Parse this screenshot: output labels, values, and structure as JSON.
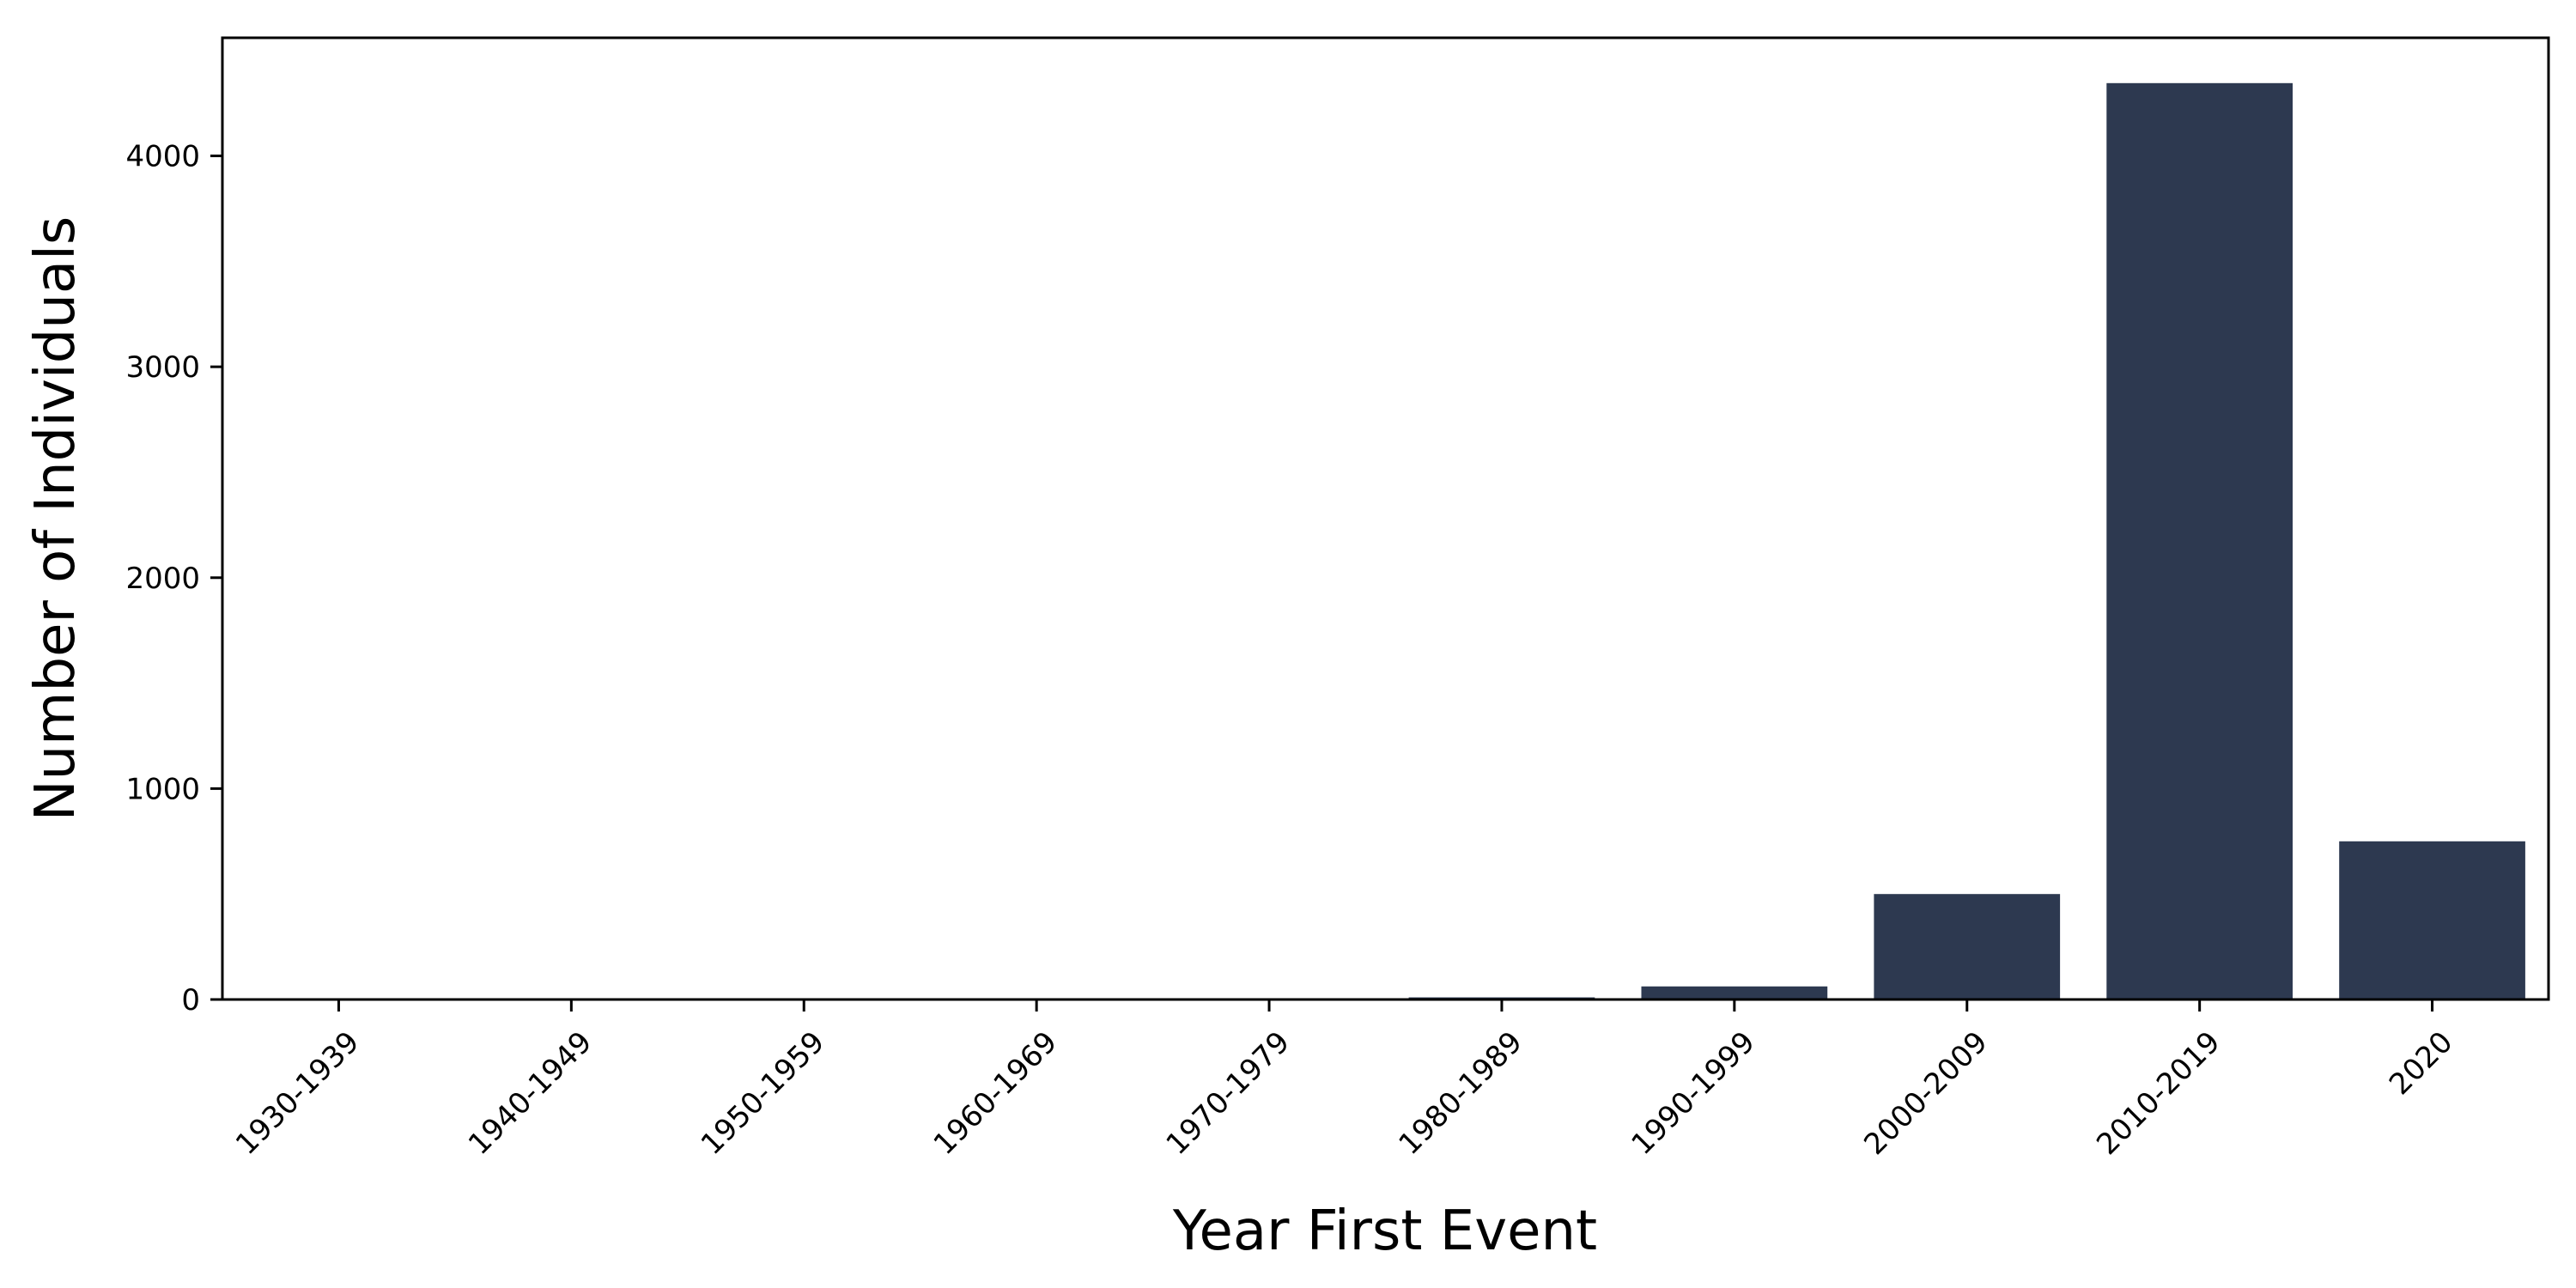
{
  "chart_data": {
    "type": "bar",
    "categories": [
      "1930-1939",
      "1940-1949",
      "1950-1959",
      "1960-1969",
      "1970-1979",
      "1980-1989",
      "1990-1999",
      "2000-2009",
      "2010-2019",
      "2020"
    ],
    "values": [
      1,
      1,
      2,
      3,
      4,
      10,
      62,
      500,
      4345,
      750
    ],
    "xlabel": "Year First Event",
    "ylabel": "Number of Individuals",
    "ylim": [
      0,
      4560
    ],
    "yticks": [
      0,
      1000,
      2000,
      3000,
      4000
    ],
    "grid": false,
    "bar_color": "#2d3950"
  }
}
